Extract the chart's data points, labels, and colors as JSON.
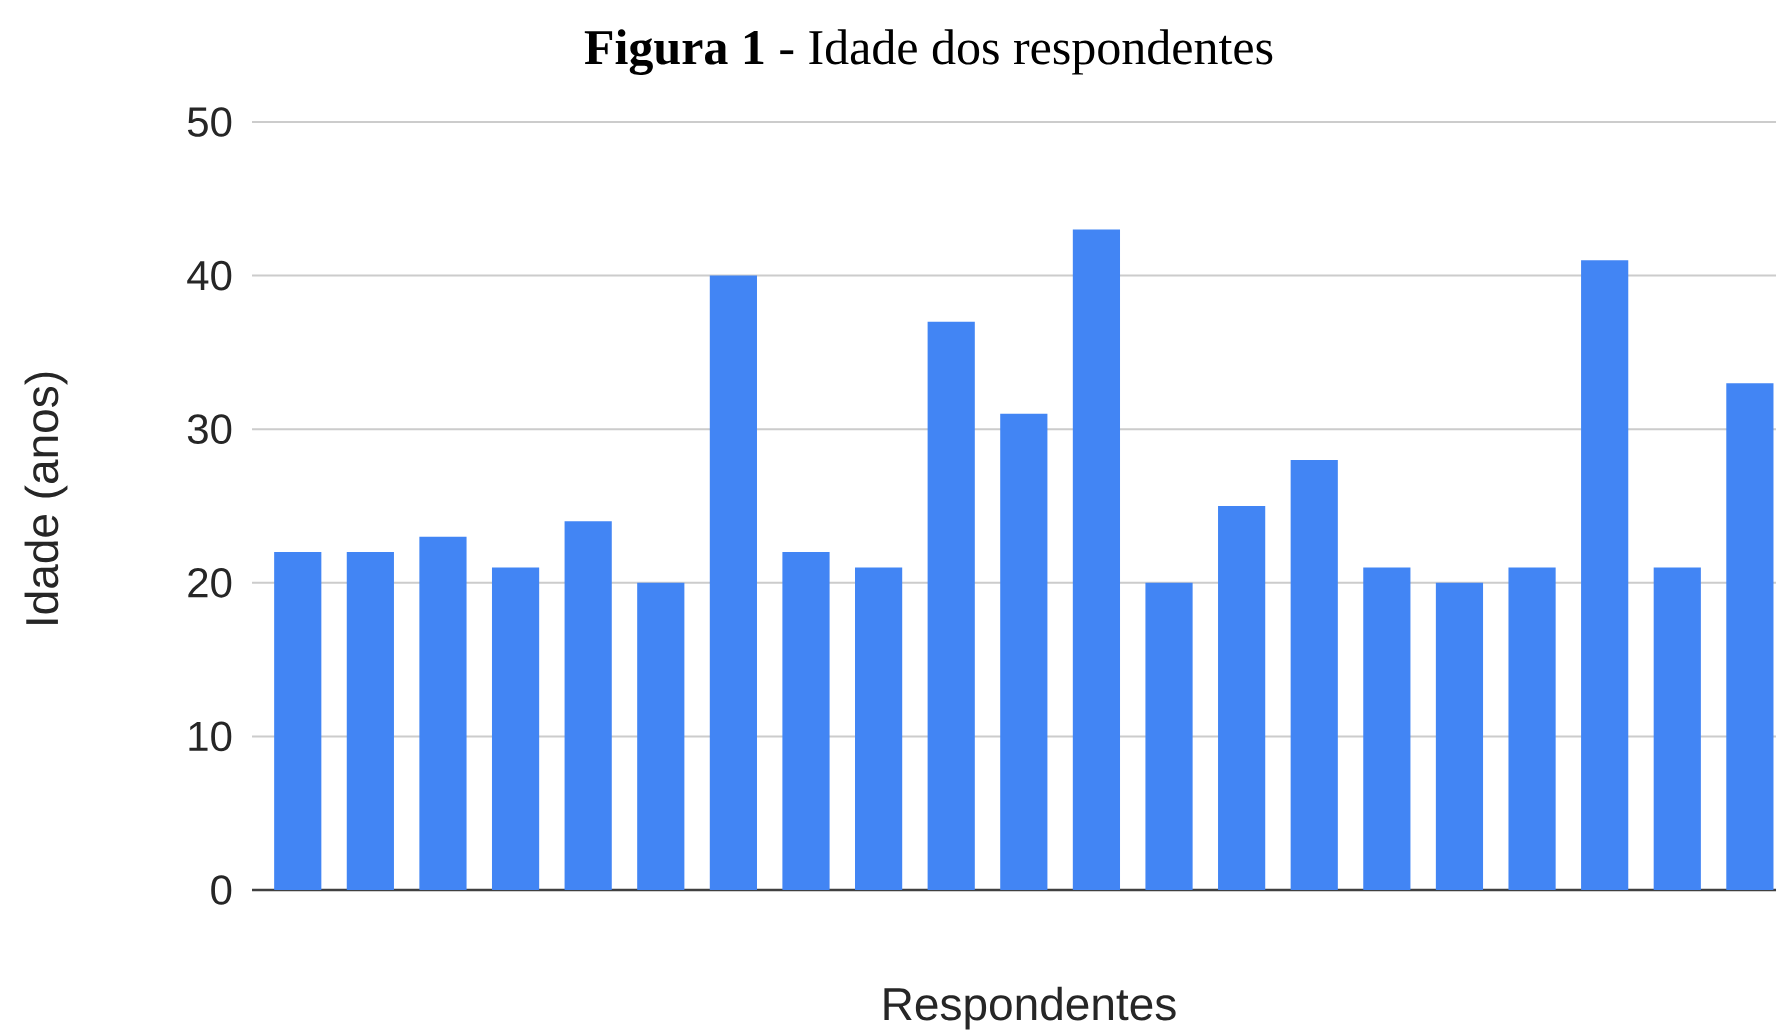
{
  "chart_data": {
    "type": "bar",
    "title": "**Figura 1** - Idade dos respondentes",
    "xlabel": "Respondentes",
    "ylabel": "Idade (anos)",
    "categories": [
      null,
      null,
      null,
      null,
      null,
      null,
      null,
      null,
      null,
      null,
      null,
      null,
      null,
      null,
      null,
      null,
      null,
      null,
      null,
      null,
      null
    ],
    "values": [
      22,
      22,
      23,
      21,
      24,
      20,
      40,
      22,
      21,
      37,
      31,
      43,
      20,
      25,
      28,
      21,
      20,
      21,
      41,
      21,
      33
    ],
    "color": "#4285f4",
    "ylim": [
      0,
      50
    ],
    "yticks": [
      0,
      10,
      20,
      30,
      40,
      50
    ],
    "grid": "y"
  }
}
